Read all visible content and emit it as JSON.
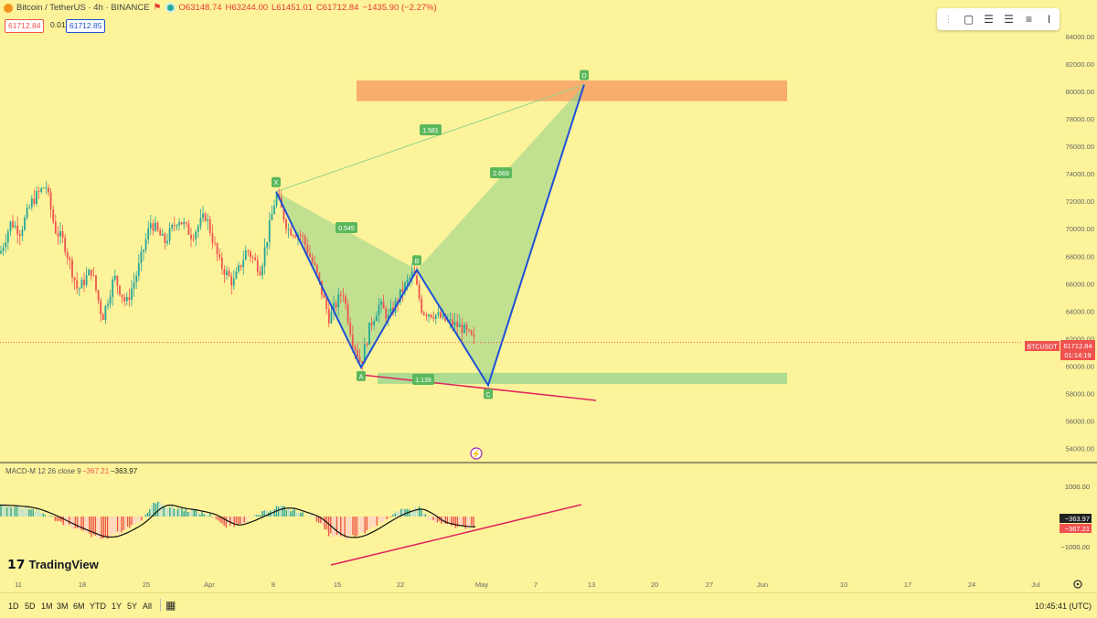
{
  "header": {
    "symbol": "Bitcoin / TetherUS · 4h · BINANCE",
    "ohlc": {
      "o": "O63148.74",
      "h": "H63244.00",
      "l": "L61451.01",
      "c": "C61712.84",
      "chg": "−1435.90 (−2.27%)"
    },
    "bid": "61712.84",
    "spread": "0.01",
    "ask": "61712.85"
  },
  "toolbar": {
    "icons": [
      "grip-icon",
      "rectangle-icon",
      "long-position-icon",
      "short-position-icon",
      "text-note-icon",
      "i-beam-icon"
    ]
  },
  "colors": {
    "bg": "#fdf39a",
    "up": "#26a69a",
    "down": "#ef5350",
    "pattern": "#1e4fd6",
    "zone_green": "#a5d98f",
    "zone_orange": "#f7a56a",
    "trendline": "#e0245e"
  },
  "chart_data": [
    {
      "type": "candlestick",
      "title": "",
      "ylim": [
        53500,
        85000
      ],
      "y_ticks": [
        "84000.00",
        "82000.00",
        "80000.00",
        "78000.00",
        "76000.00",
        "74000.00",
        "72000.00",
        "70000.00",
        "68000.00",
        "66000.00",
        "64000.00",
        "62000.00",
        "60000.00",
        "58000.00",
        "56000.00",
        "54000.00"
      ],
      "x_ticks": [
        "11",
        "18",
        "25",
        "Apr",
        "8",
        "15",
        "22",
        "May",
        "7",
        "13",
        "20",
        "27",
        "Jun",
        "10",
        "17",
        "24",
        "Jul"
      ],
      "current_price": {
        "label": "BTCUSDT",
        "value": "61712.84",
        "countdown": "01:14:19",
        "price": 61712.84
      },
      "harmonic_pattern": {
        "points": [
          {
            "name": "X",
            "price": 72700
          },
          {
            "name": "A",
            "price": 59900
          },
          {
            "name": "B",
            "price": 67000
          },
          {
            "name": "C",
            "price": 58600
          },
          {
            "name": "D",
            "price": 80500
          }
        ],
        "ratios": [
          "1.581",
          "0.545",
          "2.669",
          "1.139"
        ]
      },
      "zones": [
        {
          "name": "target",
          "from": 79300,
          "to": 80800
        },
        {
          "name": "support",
          "from": 58700,
          "to": 59500
        }
      ]
    },
    {
      "type": "macd",
      "title": "MACD-M 12 26 close 9",
      "macd": "−367.21",
      "signal": "−363.97",
      "y_ticks": [
        "1000.00",
        "−1000.00"
      ],
      "badges": [
        "−363.97",
        "−367.21"
      ]
    }
  ],
  "bottom_bar": {
    "timeframes": [
      "1D",
      "5D",
      "1M",
      "3M",
      "6M",
      "YTD",
      "1Y",
      "5Y",
      "All"
    ],
    "clock": "10:45:41 (UTC)"
  },
  "branding": "TradingView"
}
